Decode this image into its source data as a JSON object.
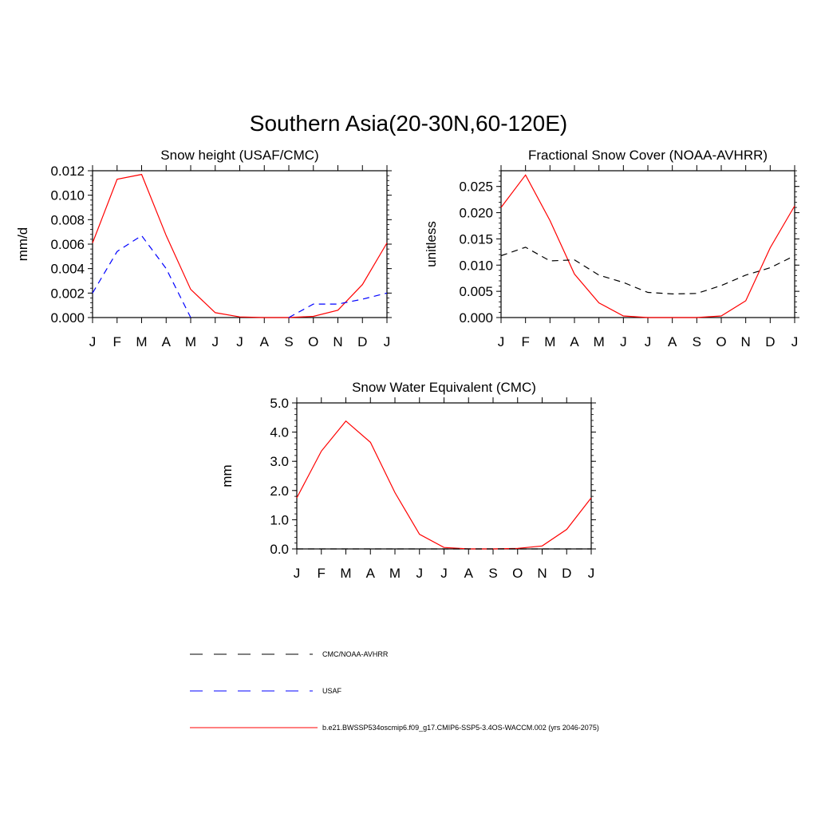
{
  "figure": {
    "title": "Southern Asia(20-30N,60-120E)"
  },
  "legend": {
    "entries": [
      {
        "label": "CMC/NOAA-AVHRR",
        "color": "#000000",
        "dash": "dashed"
      },
      {
        "label": "USAF",
        "color": "#0000ff",
        "dash": "dashed"
      },
      {
        "label": "b.e21.BWSSP534oscmip6.f09_g17.CMIP6-SSP5-3.4OS-WACCM.002 (yrs 2046-2075)",
        "color": "#ff0000",
        "dash": "solid"
      }
    ]
  },
  "chart_data": [
    {
      "type": "line",
      "title": "Snow height (USAF/CMC)",
      "xlabel": "",
      "ylabel": "mm/d",
      "categories": [
        "J",
        "F",
        "M",
        "A",
        "M",
        "J",
        "J",
        "A",
        "S",
        "O",
        "N",
        "D",
        "J"
      ],
      "ylim": [
        0,
        0.012
      ],
      "yticks": [
        "0.000",
        "0.002",
        "0.004",
        "0.006",
        "0.008",
        "0.010",
        "0.012"
      ],
      "series": [
        {
          "color": "#ff0000",
          "dash": "solid",
          "values": [
            0.0061,
            0.0113,
            0.0117,
            0.0067,
            0.0023,
            0.0004,
            5e-05,
            0.0,
            0.0,
            0.0001,
            0.0006,
            0.0027,
            0.0061
          ]
        },
        {
          "color": "#0000ff",
          "dash": "dashed",
          "values": [
            0.002,
            0.0054,
            0.0067,
            0.004,
            0.0,
            null,
            null,
            null,
            0.0,
            0.0011,
            0.0011,
            0.0015,
            0.002
          ]
        }
      ]
    },
    {
      "type": "line",
      "title": "Fractional Snow Cover (NOAA-AVHRR)",
      "xlabel": "",
      "ylabel": "unitless",
      "categories": [
        "J",
        "F",
        "M",
        "A",
        "M",
        "J",
        "J",
        "A",
        "S",
        "O",
        "N",
        "D",
        "J"
      ],
      "ylim": [
        0,
        0.028
      ],
      "yticks": [
        "0.000",
        "0.005",
        "0.010",
        "0.015",
        "0.020",
        "0.025"
      ],
      "series": [
        {
          "color": "#ff0000",
          "dash": "solid",
          "values": [
            0.021,
            0.0272,
            0.0185,
            0.0083,
            0.0028,
            0.0003,
            0.0,
            0.0,
            0.0,
            0.0003,
            0.0032,
            0.0133,
            0.0213
          ]
        },
        {
          "color": "#000000",
          "dash": "dashed",
          "values": [
            0.0118,
            0.0134,
            0.0108,
            0.011,
            0.0081,
            0.0067,
            0.0048,
            0.0045,
            0.0046,
            0.0061,
            0.0081,
            0.0095,
            0.0118
          ]
        }
      ]
    },
    {
      "type": "line",
      "title": "Snow Water Equivalent (CMC)",
      "xlabel": "",
      "ylabel": "mm",
      "categories": [
        "J",
        "F",
        "M",
        "A",
        "M",
        "J",
        "J",
        "A",
        "S",
        "O",
        "N",
        "D",
        "J"
      ],
      "ylim": [
        0,
        5.0
      ],
      "yticks": [
        "0.0",
        "1.0",
        "2.0",
        "3.0",
        "4.0",
        "5.0"
      ],
      "series": [
        {
          "color": "#ff0000",
          "dash": "solid",
          "values": [
            1.75,
            3.35,
            4.38,
            3.65,
            1.93,
            0.5,
            0.05,
            0.0,
            0.0,
            0.02,
            0.1,
            0.67,
            1.75
          ]
        },
        {
          "color": "#000000",
          "dash": "dashed",
          "values": [
            0.0,
            0.0,
            0.0,
            0.0,
            0.0,
            0.0,
            0.0,
            0.0,
            0.0,
            0.0,
            0.0,
            0.0,
            0.0
          ]
        }
      ]
    }
  ]
}
